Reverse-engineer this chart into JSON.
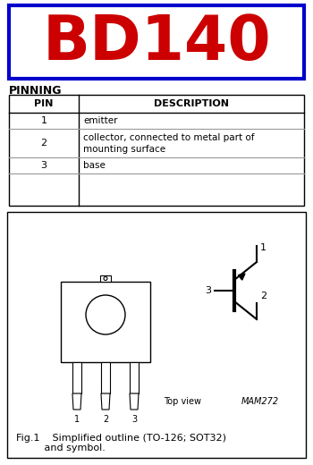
{
  "title": "BD140",
  "title_color": "#cc0000",
  "title_box_color": "#0000cc",
  "bg_color": "#ffffff",
  "pinning_label": "PINNING",
  "table_headers": [
    "PIN",
    "DESCRIPTION"
  ],
  "table_rows": [
    [
      "1",
      "emitter"
    ],
    [
      "2",
      "collector, connected to metal part of\nmounting surface"
    ],
    [
      "3",
      "base"
    ]
  ],
  "fig_caption_line1": "Fig.1    Simplified outline (TO-126; SOT32)",
  "fig_caption_line2": "         and symbol.",
  "top_view_label": "Top view",
  "mam_label": "MAM272"
}
